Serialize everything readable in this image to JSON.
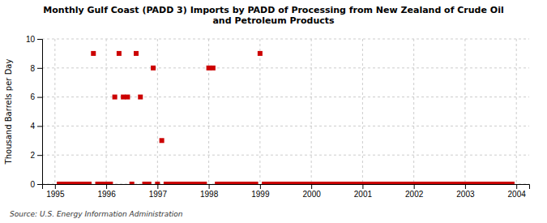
{
  "chart_data": {
    "type": "scatter",
    "title": "Monthly Gulf Coast (PADD 3) Imports by PADD of Processing from New Zealand of Crude Oil\nand Petroleum Products",
    "ylabel": "Thousand Barrels per Day",
    "source": "Source: U.S. Energy Information Administration",
    "color": "#cc0000",
    "marker": "square",
    "grid": true,
    "xlim": [
      1994.75,
      2004.25
    ],
    "ylim": [
      0,
      10
    ],
    "xticks": [
      1995,
      1996,
      1997,
      1998,
      1999,
      2000,
      2001,
      2002,
      2003,
      2004
    ],
    "yticks": [
      0,
      2,
      4,
      6,
      8,
      10
    ],
    "x": [
      1995.0833,
      1995.1667,
      1995.25,
      1995.3333,
      1995.4167,
      1995.5,
      1995.5833,
      1995.6667,
      1995.75,
      1995.8333,
      1995.9167,
      1996.0,
      1996.0833,
      1996.1667,
      1996.25,
      1996.3333,
      1996.4167,
      1996.5,
      1996.5833,
      1996.6667,
      1996.75,
      1996.8333,
      1996.9167,
      1997.0,
      1997.0833,
      1997.1667,
      1997.25,
      1997.3333,
      1997.4167,
      1997.5,
      1997.5833,
      1997.6667,
      1997.75,
      1997.8333,
      1997.9167,
      1998.0,
      1998.0833,
      1998.1667,
      1998.25,
      1998.3333,
      1998.4167,
      1998.5,
      1998.5833,
      1998.6667,
      1998.75,
      1998.8333,
      1998.9167,
      1999.0,
      1999.0833,
      1999.1667,
      1999.25,
      1999.3333,
      1999.4167,
      1999.5,
      1999.5833,
      1999.6667,
      1999.75,
      1999.8333,
      1999.9167,
      2000.0,
      2000.0833,
      2000.1667,
      2000.25,
      2000.3333,
      2000.4167,
      2000.5,
      2000.5833,
      2000.6667,
      2000.75,
      2000.8333,
      2000.9167,
      2001.0,
      2001.0833,
      2001.1667,
      2001.25,
      2001.3333,
      2001.4167,
      2001.5,
      2001.5833,
      2001.6667,
      2001.75,
      2001.8333,
      2001.9167,
      2002.0,
      2002.0833,
      2002.1667,
      2002.25,
      2002.3333,
      2002.4167,
      2002.5,
      2002.5833,
      2002.6667,
      2002.75,
      2002.8333,
      2002.9167,
      2003.0,
      2003.0833,
      2003.1667,
      2003.25,
      2003.3333,
      2003.4167,
      2003.5,
      2003.5833,
      2003.6667,
      2003.75,
      2003.8333,
      2003.9167
    ],
    "values": [
      0,
      0,
      0,
      0,
      0,
      0,
      0,
      0,
      9,
      0,
      0,
      0,
      0,
      6,
      9,
      6,
      6,
      0,
      9,
      6,
      0,
      0,
      8,
      0,
      3,
      0,
      0,
      0,
      0,
      0,
      0,
      0,
      0,
      0,
      0,
      8,
      8,
      0,
      0,
      0,
      0,
      0,
      0,
      0,
      0,
      0,
      0,
      9,
      0,
      0,
      0,
      0,
      0,
      0,
      0,
      0,
      0,
      0,
      0,
      0,
      0,
      0,
      0,
      0,
      0,
      0,
      0,
      0,
      0,
      0,
      0,
      0,
      0,
      0,
      0,
      0,
      0,
      0,
      0,
      0,
      0,
      0,
      0,
      0,
      0,
      0,
      0,
      0,
      0,
      0,
      0,
      0,
      0,
      0,
      0,
      0,
      0,
      0,
      0,
      0,
      0,
      0,
      0,
      0,
      0,
      0,
      0
    ]
  }
}
